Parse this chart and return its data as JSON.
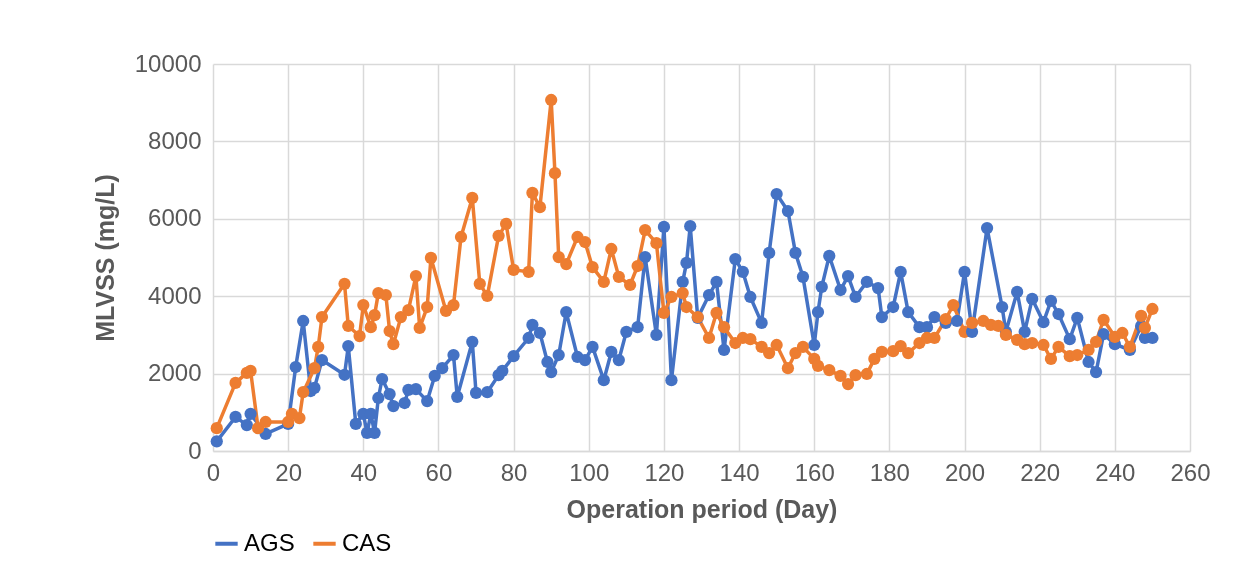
{
  "chart_data": {
    "type": "line",
    "xlabel": "Operation period (Day)",
    "ylabel": "MLVSS (mg/L)",
    "xlim": [
      0,
      260
    ],
    "xticks": [
      0,
      20,
      40,
      60,
      80,
      100,
      120,
      140,
      160,
      180,
      200,
      220,
      240,
      260
    ],
    "ylim": [
      0,
      10000
    ],
    "yticks": [
      0,
      2000,
      4000,
      6000,
      8000,
      10000
    ],
    "grid": true,
    "legend": "bottom",
    "marker": "circle",
    "line_style": "solid",
    "series": [
      {
        "name": "AGS",
        "color": "#4472c4",
        "x": [
          1,
          6,
          9,
          10,
          14,
          20,
          22,
          24,
          26,
          27,
          29,
          35,
          36,
          38,
          40,
          41,
          42,
          43,
          44,
          45,
          47,
          48,
          51,
          52,
          54,
          57,
          59,
          61,
          64,
          65,
          69,
          70,
          73,
          76,
          77,
          80,
          84,
          85,
          87,
          89,
          90,
          92,
          94,
          97,
          99,
          101,
          104,
          106,
          108,
          110,
          113,
          115,
          118,
          120,
          122,
          125,
          126,
          127,
          129,
          132,
          134,
          136,
          139,
          141,
          143,
          146,
          148,
          150,
          153,
          155,
          157,
          160,
          161,
          162,
          164,
          167,
          169,
          171,
          174,
          177,
          178,
          181,
          183,
          185,
          188,
          190,
          192,
          195,
          198,
          200,
          202,
          206,
          210,
          211,
          214,
          216,
          218,
          221,
          223,
          225,
          228,
          230,
          233,
          235,
          237,
          240,
          244,
          247,
          248,
          250
        ],
        "values": [
          250,
          880,
          670,
          960,
          440,
          700,
          2170,
          3360,
          1550,
          1630,
          2350,
          1970,
          2710,
          700,
          960,
          470,
          960,
          470,
          1370,
          1860,
          1470,
          1160,
          1240,
          1580,
          1600,
          1290,
          1940,
          2140,
          2480,
          1400,
          2820,
          1500,
          1520,
          1960,
          2070,
          2450,
          2920,
          3260,
          3050,
          2300,
          2040,
          2480,
          3590,
          2430,
          2350,
          2690,
          1830,
          2560,
          2350,
          3080,
          3200,
          5010,
          3000,
          5790,
          1830,
          4370,
          4860,
          5810,
          3440,
          4030,
          4370,
          2610,
          4960,
          4630,
          3980,
          3310,
          5120,
          6640,
          6200,
          5120,
          4500,
          2740,
          3590,
          4240,
          5040,
          4160,
          4520,
          3980,
          4370,
          4210,
          3460,
          3720,
          4630,
          3590,
          3200,
          3200,
          3460,
          3310,
          3360,
          4630,
          3080,
          5760,
          3720,
          3080,
          4110,
          3080,
          3930,
          3330,
          3880,
          3540,
          2890,
          3440,
          2300,
          2040,
          3020,
          2760,
          2610,
          3230,
          2920,
          2920
        ]
      },
      {
        "name": "CAS",
        "color": "#ed7d31",
        "x": [
          1,
          6,
          9,
          10,
          12,
          14,
          20,
          21,
          23,
          24,
          27,
          28,
          29,
          35,
          36,
          39,
          40,
          42,
          43,
          44,
          46,
          47,
          48,
          50,
          52,
          54,
          55,
          57,
          58,
          62,
          64,
          66,
          69,
          71,
          73,
          76,
          78,
          80,
          84,
          85,
          87,
          90,
          91,
          92,
          94,
          97,
          99,
          101,
          104,
          106,
          108,
          111,
          113,
          115,
          118,
          120,
          122,
          125,
          126,
          129,
          132,
          134,
          136,
          139,
          141,
          143,
          146,
          148,
          150,
          153,
          155,
          157,
          160,
          161,
          164,
          167,
          169,
          171,
          174,
          176,
          178,
          181,
          183,
          185,
          188,
          190,
          192,
          195,
          197,
          200,
          202,
          205,
          207,
          209,
          211,
          214,
          216,
          218,
          221,
          223,
          225,
          228,
          230,
          233,
          235,
          237,
          240,
          242,
          244,
          247,
          248,
          250
        ],
        "values": [
          590,
          1760,
          2020,
          2070,
          590,
          750,
          750,
          960,
          850,
          1520,
          2140,
          2690,
          3460,
          4320,
          3230,
          2970,
          3770,
          3200,
          3510,
          4080,
          4030,
          3100,
          2760,
          3460,
          3640,
          4520,
          3180,
          3720,
          4990,
          3620,
          3770,
          5530,
          6540,
          4320,
          4010,
          5560,
          5870,
          4680,
          4630,
          6670,
          6300,
          9070,
          7180,
          5010,
          4830,
          5530,
          5400,
          4750,
          4370,
          5220,
          4500,
          4290,
          4780,
          5710,
          5370,
          3570,
          3980,
          4080,
          3720,
          3460,
          2920,
          3570,
          3200,
          2790,
          2920,
          2890,
          2690,
          2530,
          2740,
          2140,
          2530,
          2690,
          2380,
          2200,
          2090,
          1940,
          1730,
          1960,
          1990,
          2380,
          2560,
          2580,
          2710,
          2530,
          2790,
          2920,
          2920,
          3410,
          3770,
          3080,
          3310,
          3360,
          3260,
          3230,
          3000,
          2870,
          2760,
          2790,
          2740,
          2380,
          2690,
          2450,
          2480,
          2610,
          2820,
          3390,
          2950,
          3050,
          2690,
          3490,
          3180,
          3670
        ]
      }
    ]
  }
}
